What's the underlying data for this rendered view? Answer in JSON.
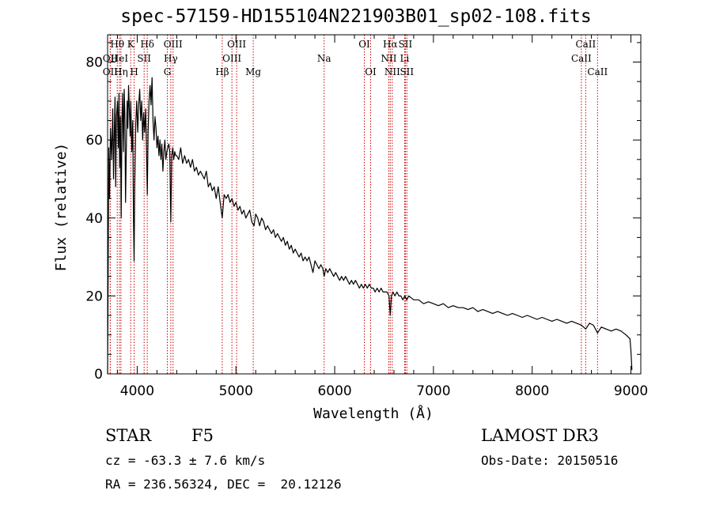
{
  "chart_data": {
    "type": "line",
    "title": "spec-57159-HD155104N221903B01_sp02-108.fits",
    "xlabel": "Wavelength (Å)",
    "ylabel": "Flux (relative)",
    "xlim": [
      3700,
      9100
    ],
    "ylim": [
      0,
      87
    ],
    "x_ticks": [
      4000,
      5000,
      6000,
      7000,
      8000,
      9000
    ],
    "y_ticks": [
      0,
      20,
      40,
      60,
      80
    ],
    "grid": false,
    "series": [
      {
        "name": "flux",
        "points": [
          [
            3700,
            0
          ],
          [
            3705,
            22
          ],
          [
            3712,
            58
          ],
          [
            3720,
            45
          ],
          [
            3730,
            63
          ],
          [
            3742,
            55
          ],
          [
            3752,
            68
          ],
          [
            3760,
            50
          ],
          [
            3768,
            62
          ],
          [
            3775,
            71
          ],
          [
            3782,
            48
          ],
          [
            3790,
            66
          ],
          [
            3800,
            70
          ],
          [
            3808,
            58
          ],
          [
            3815,
            72
          ],
          [
            3822,
            53
          ],
          [
            3830,
            66
          ],
          [
            3838,
            40
          ],
          [
            3845,
            64
          ],
          [
            3852,
            72
          ],
          [
            3860,
            57
          ],
          [
            3868,
            73
          ],
          [
            3875,
            67
          ],
          [
            3882,
            44
          ],
          [
            3890,
            58
          ],
          [
            3898,
            70
          ],
          [
            3905,
            63
          ],
          [
            3912,
            74
          ],
          [
            3920,
            68
          ],
          [
            3928,
            61
          ],
          [
            3935,
            70
          ],
          [
            3945,
            57
          ],
          [
            3955,
            65
          ],
          [
            3962,
            40
          ],
          [
            3968,
            29
          ],
          [
            3975,
            48
          ],
          [
            3985,
            64
          ],
          [
            3995,
            70
          ],
          [
            4005,
            62
          ],
          [
            4015,
            69
          ],
          [
            4025,
            73
          ],
          [
            4035,
            65
          ],
          [
            4045,
            70
          ],
          [
            4055,
            60
          ],
          [
            4065,
            67
          ],
          [
            4075,
            62
          ],
          [
            4085,
            68
          ],
          [
            4094,
            57
          ],
          [
            4102,
            46
          ],
          [
            4110,
            62
          ],
          [
            4120,
            70
          ],
          [
            4130,
            74
          ],
          [
            4140,
            69
          ],
          [
            4150,
            76
          ],
          [
            4160,
            65
          ],
          [
            4170,
            60
          ],
          [
            4180,
            66
          ],
          [
            4190,
            63
          ],
          [
            4200,
            58
          ],
          [
            4210,
            61
          ],
          [
            4220,
            56
          ],
          [
            4230,
            60
          ],
          [
            4240,
            55
          ],
          [
            4250,
            59
          ],
          [
            4260,
            52
          ],
          [
            4270,
            57
          ],
          [
            4280,
            60
          ],
          [
            4290,
            55
          ],
          [
            4300,
            57
          ],
          [
            4310,
            58
          ],
          [
            4320,
            59
          ],
          [
            4330,
            57
          ],
          [
            4340,
            39
          ],
          [
            4350,
            56
          ],
          [
            4360,
            58
          ],
          [
            4370,
            55
          ],
          [
            4380,
            57
          ],
          [
            4390,
            56
          ],
          [
            4400,
            56
          ],
          [
            4420,
            55
          ],
          [
            4440,
            58
          ],
          [
            4460,
            54
          ],
          [
            4480,
            56
          ],
          [
            4500,
            54
          ],
          [
            4520,
            55
          ],
          [
            4540,
            53
          ],
          [
            4560,
            55
          ],
          [
            4580,
            52
          ],
          [
            4600,
            53
          ],
          [
            4620,
            51
          ],
          [
            4640,
            52
          ],
          [
            4660,
            51
          ],
          [
            4680,
            50
          ],
          [
            4700,
            52
          ],
          [
            4720,
            48
          ],
          [
            4740,
            49
          ],
          [
            4760,
            47
          ],
          [
            4780,
            48
          ],
          [
            4800,
            45
          ],
          [
            4820,
            48
          ],
          [
            4840,
            44
          ],
          [
            4861,
            40
          ],
          [
            4880,
            46
          ],
          [
            4900,
            45
          ],
          [
            4920,
            46
          ],
          [
            4940,
            44
          ],
          [
            4960,
            45
          ],
          [
            4980,
            43
          ],
          [
            5000,
            44
          ],
          [
            5020,
            42
          ],
          [
            5040,
            43
          ],
          [
            5060,
            41
          ],
          [
            5080,
            42
          ],
          [
            5100,
            40
          ],
          [
            5120,
            41
          ],
          [
            5140,
            42
          ],
          [
            5160,
            39
          ],
          [
            5183,
            38
          ],
          [
            5200,
            41
          ],
          [
            5220,
            40
          ],
          [
            5240,
            38
          ],
          [
            5260,
            40
          ],
          [
            5280,
            39
          ],
          [
            5300,
            37
          ],
          [
            5320,
            38
          ],
          [
            5340,
            37
          ],
          [
            5360,
            36
          ],
          [
            5380,
            37
          ],
          [
            5400,
            35
          ],
          [
            5420,
            36
          ],
          [
            5440,
            35
          ],
          [
            5460,
            34
          ],
          [
            5480,
            35
          ],
          [
            5500,
            33
          ],
          [
            5520,
            34
          ],
          [
            5540,
            32
          ],
          [
            5560,
            33
          ],
          [
            5580,
            31
          ],
          [
            5600,
            32
          ],
          [
            5620,
            31
          ],
          [
            5640,
            30
          ],
          [
            5660,
            31
          ],
          [
            5680,
            29
          ],
          [
            5700,
            30
          ],
          [
            5720,
            29
          ],
          [
            5740,
            30
          ],
          [
            5760,
            28
          ],
          [
            5780,
            26
          ],
          [
            5800,
            29
          ],
          [
            5820,
            28
          ],
          [
            5840,
            27
          ],
          [
            5860,
            28
          ],
          [
            5880,
            27
          ],
          [
            5893,
            25
          ],
          [
            5910,
            27
          ],
          [
            5930,
            26
          ],
          [
            5950,
            27
          ],
          [
            5970,
            26
          ],
          [
            5990,
            25
          ],
          [
            6010,
            26
          ],
          [
            6030,
            25
          ],
          [
            6050,
            24
          ],
          [
            6070,
            25
          ],
          [
            6090,
            24
          ],
          [
            6110,
            25
          ],
          [
            6130,
            24
          ],
          [
            6150,
            23
          ],
          [
            6170,
            24
          ],
          [
            6190,
            23
          ],
          [
            6210,
            24
          ],
          [
            6230,
            23
          ],
          [
            6250,
            22
          ],
          [
            6270,
            23
          ],
          [
            6290,
            22
          ],
          [
            6310,
            23
          ],
          [
            6330,
            22
          ],
          [
            6350,
            23
          ],
          [
            6370,
            22
          ],
          [
            6390,
            22
          ],
          [
            6410,
            21
          ],
          [
            6430,
            22
          ],
          [
            6450,
            21
          ],
          [
            6470,
            22
          ],
          [
            6490,
            21
          ],
          [
            6510,
            21
          ],
          [
            6530,
            21
          ],
          [
            6550,
            20
          ],
          [
            6563,
            15
          ],
          [
            6575,
            20
          ],
          [
            6590,
            21
          ],
          [
            6610,
            20
          ],
          [
            6630,
            21
          ],
          [
            6650,
            20
          ],
          [
            6670,
            20
          ],
          [
            6690,
            19
          ],
          [
            6710,
            20
          ],
          [
            6730,
            19
          ],
          [
            6750,
            20
          ],
          [
            6800,
            19
          ],
          [
            6850,
            19
          ],
          [
            6900,
            18
          ],
          [
            6950,
            18.5
          ],
          [
            7000,
            18
          ],
          [
            7050,
            17.5
          ],
          [
            7100,
            18
          ],
          [
            7150,
            17
          ],
          [
            7200,
            17.5
          ],
          [
            7250,
            17
          ],
          [
            7300,
            17
          ],
          [
            7350,
            16.5
          ],
          [
            7400,
            17
          ],
          [
            7450,
            16
          ],
          [
            7500,
            16.5
          ],
          [
            7550,
            16
          ],
          [
            7600,
            15.5
          ],
          [
            7650,
            16
          ],
          [
            7700,
            15.5
          ],
          [
            7750,
            15
          ],
          [
            7800,
            15.5
          ],
          [
            7850,
            15
          ],
          [
            7900,
            14.5
          ],
          [
            7950,
            15
          ],
          [
            8000,
            14.5
          ],
          [
            8050,
            14
          ],
          [
            8100,
            14.5
          ],
          [
            8150,
            14
          ],
          [
            8200,
            13.5
          ],
          [
            8250,
            14
          ],
          [
            8300,
            13.5
          ],
          [
            8350,
            13
          ],
          [
            8400,
            13.5
          ],
          [
            8450,
            13
          ],
          [
            8500,
            12.5
          ],
          [
            8542,
            11.5
          ],
          [
            8580,
            13
          ],
          [
            8620,
            12.5
          ],
          [
            8662,
            10.5
          ],
          [
            8700,
            12
          ],
          [
            8750,
            11.5
          ],
          [
            8800,
            11
          ],
          [
            8850,
            11.5
          ],
          [
            8900,
            11
          ],
          [
            8950,
            10
          ],
          [
            8990,
            9
          ],
          [
            9000,
            6
          ],
          [
            9010,
            1
          ]
        ]
      }
    ],
    "lines": [
      {
        "label": "Hθ",
        "x": 3798,
        "row": 0
      },
      {
        "label": "OII",
        "x": 3727,
        "row": 1
      },
      {
        "label": "OII",
        "x": 3727,
        "row": 2
      },
      {
        "label": "HeI",
        "x": 3820,
        "row": 1
      },
      {
        "label": "Hη",
        "x": 3835,
        "row": 2
      },
      {
        "label": "K",
        "x": 3934,
        "row": 0
      },
      {
        "label": "SII",
        "x": 4070,
        "row": 1
      },
      {
        "label": "H",
        "x": 3969,
        "row": 2
      },
      {
        "label": "Hδ",
        "x": 4102,
        "row": 0
      },
      {
        "label": "OIII",
        "x": 4363,
        "row": 0
      },
      {
        "label": "Hγ",
        "x": 4340,
        "row": 1
      },
      {
        "label": "G",
        "x": 4305,
        "row": 2
      },
      {
        "label": "OIII",
        "x": 5007,
        "row": 0
      },
      {
        "label": "OIII",
        "x": 4959,
        "row": 1
      },
      {
        "label": "Hβ",
        "x": 4861,
        "row": 2
      },
      {
        "label": "Mg",
        "x": 5175,
        "row": 2
      },
      {
        "label": "Na",
        "x": 5893,
        "row": 1
      },
      {
        "label": "OI",
        "x": 6300,
        "row": 0
      },
      {
        "label": "OI",
        "x": 6364,
        "row": 2
      },
      {
        "label": "Hα",
        "x": 6563,
        "row": 0
      },
      {
        "label": "SII",
        "x": 6716,
        "row": 0
      },
      {
        "label": "NII",
        "x": 6548,
        "row": 1
      },
      {
        "label": "Li",
        "x": 6708,
        "row": 1
      },
      {
        "label": "NII",
        "x": 6583,
        "row": 2
      },
      {
        "label": "SII",
        "x": 6731,
        "row": 2
      },
      {
        "label": "CaII",
        "x": 8542,
        "row": 0
      },
      {
        "label": "CaII",
        "x": 8498,
        "row": 1
      },
      {
        "label": "CaII",
        "x": 8662,
        "row": 2
      }
    ]
  },
  "info": {
    "object_type": "STAR",
    "subclass": "F5",
    "survey": "LAMOST DR3",
    "redshift": "cz = -63.3 ± 7.6 km/s",
    "obs_date": "Obs-Date: 20150516",
    "coords": "RA = 236.56324, DEC =  20.12126"
  },
  "colors": {
    "line_marker": "#cc0000",
    "spectrum": "#000000",
    "axes": "#000000"
  }
}
